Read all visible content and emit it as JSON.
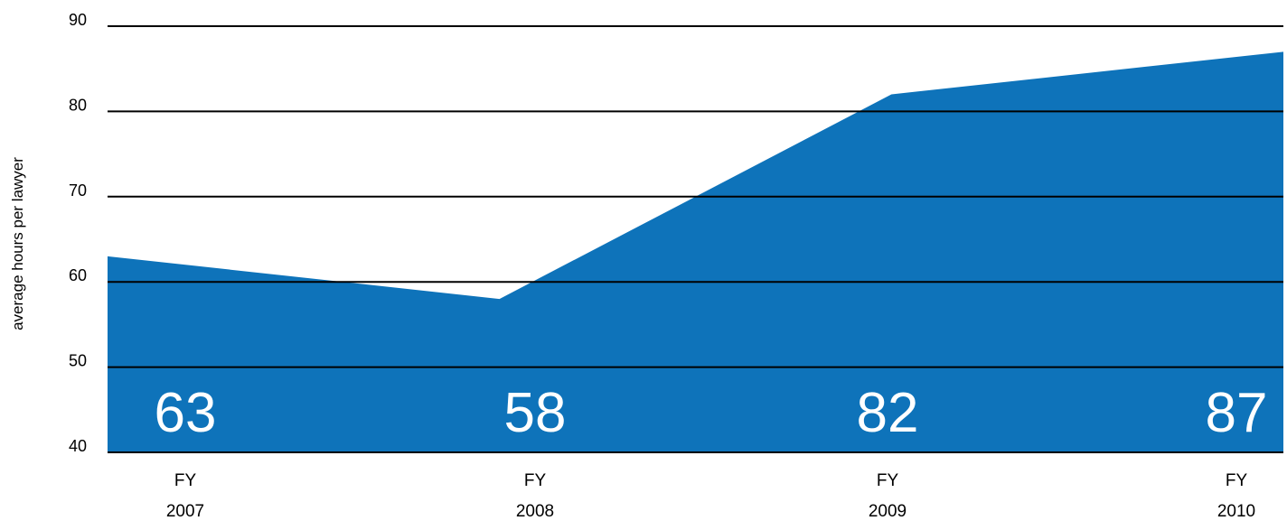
{
  "chart_data": {
    "type": "area",
    "title": "",
    "xlabel": "",
    "ylabel": "average hours per lawyer",
    "categories": [
      [
        "FY",
        "2007"
      ],
      [
        "FY",
        "2008"
      ],
      [
        "FY",
        "2009"
      ],
      [
        "FY",
        "2010"
      ]
    ],
    "values": [
      63,
      58,
      82,
      87
    ],
    "data_labels": [
      "63",
      "58",
      "82",
      "87"
    ],
    "ylim": [
      40,
      90
    ],
    "yticks": [
      "40",
      "50",
      "60",
      "70",
      "80",
      "90"
    ],
    "grid": true,
    "legend": "none",
    "colors": {
      "area": "#0e73ba",
      "grid": "#000000",
      "label": "#ffffff",
      "text": "#000000"
    }
  }
}
